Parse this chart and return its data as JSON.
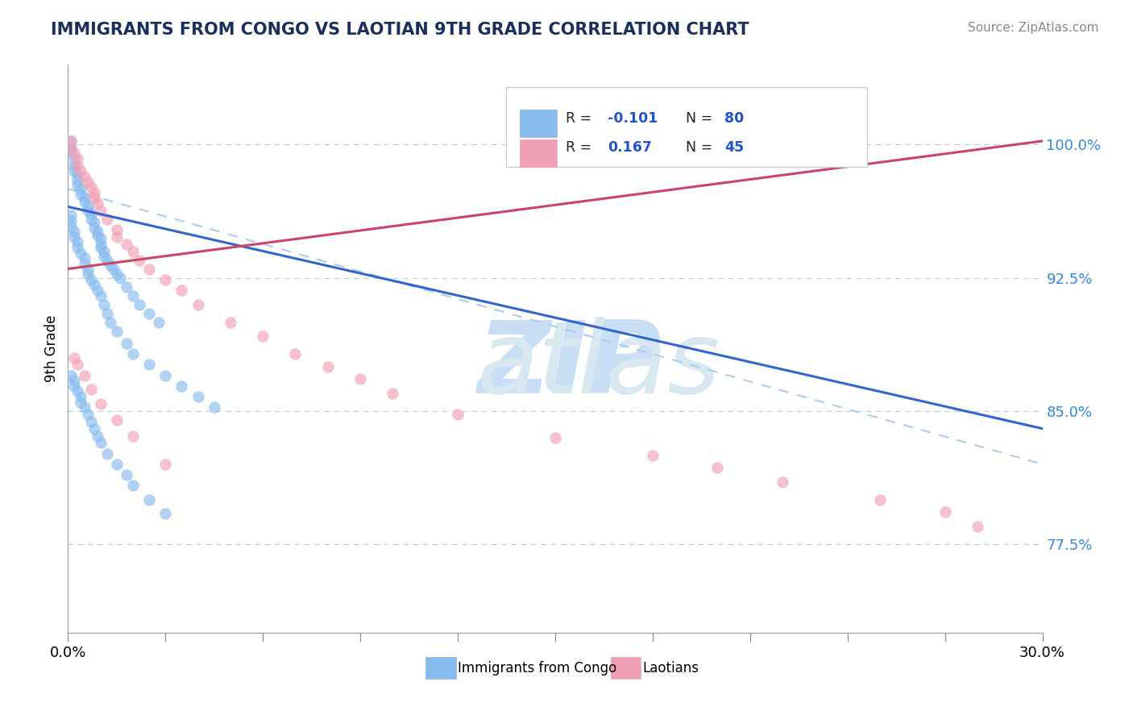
{
  "title": "IMMIGRANTS FROM CONGO VS LAOTIAN 9TH GRADE CORRELATION CHART",
  "source": "Source: ZipAtlas.com",
  "ylabel": "9th Grade",
  "y_tick_labels": [
    "77.5%",
    "85.0%",
    "92.5%",
    "100.0%"
  ],
  "y_tick_values": [
    0.775,
    0.85,
    0.925,
    1.0
  ],
  "xlim": [
    0.0,
    0.3
  ],
  "ylim": [
    0.725,
    1.045
  ],
  "blue_color": "#88BBEE",
  "pink_color": "#F0A0B5",
  "blue_line_color": "#3366CC",
  "pink_line_color": "#CC4466",
  "dashed_line_color": "#AACCEE",
  "watermark_zip_color": "#C8DFF5",
  "watermark_atlas_color": "#D8E8F0",
  "blue_line_x": [
    0.0,
    0.3
  ],
  "blue_line_y": [
    0.965,
    0.84
  ],
  "pink_line_x": [
    0.0,
    0.3
  ],
  "pink_line_y": [
    0.93,
    1.002
  ],
  "dashed_line_x": [
    0.0,
    0.3
  ],
  "dashed_line_y": [
    0.975,
    0.82
  ],
  "blue_x": [
    0.001,
    0.001,
    0.001,
    0.002,
    0.002,
    0.002,
    0.003,
    0.003,
    0.003,
    0.004,
    0.004,
    0.005,
    0.005,
    0.006,
    0.006,
    0.007,
    0.007,
    0.008,
    0.008,
    0.009,
    0.009,
    0.01,
    0.01,
    0.01,
    0.011,
    0.011,
    0.012,
    0.013,
    0.014,
    0.015,
    0.016,
    0.018,
    0.02,
    0.022,
    0.025,
    0.028,
    0.001,
    0.001,
    0.001,
    0.002,
    0.002,
    0.003,
    0.003,
    0.004,
    0.005,
    0.005,
    0.006,
    0.006,
    0.007,
    0.008,
    0.009,
    0.01,
    0.011,
    0.012,
    0.013,
    0.015,
    0.018,
    0.02,
    0.025,
    0.03,
    0.035,
    0.04,
    0.045,
    0.001,
    0.002,
    0.002,
    0.003,
    0.004,
    0.004,
    0.005,
    0.006,
    0.007,
    0.008,
    0.009,
    0.01,
    0.012,
    0.015,
    0.018,
    0.02,
    0.025,
    0.03
  ],
  "blue_y": [
    1.002,
    0.998,
    0.996,
    0.992,
    0.988,
    0.985,
    0.983,
    0.98,
    0.977,
    0.975,
    0.972,
    0.97,
    0.968,
    0.965,
    0.963,
    0.961,
    0.958,
    0.956,
    0.953,
    0.951,
    0.949,
    0.947,
    0.944,
    0.942,
    0.94,
    0.937,
    0.935,
    0.932,
    0.93,
    0.927,
    0.925,
    0.92,
    0.915,
    0.91,
    0.905,
    0.9,
    0.96,
    0.957,
    0.954,
    0.951,
    0.948,
    0.945,
    0.942,
    0.939,
    0.936,
    0.933,
    0.93,
    0.927,
    0.924,
    0.921,
    0.918,
    0.915,
    0.91,
    0.905,
    0.9,
    0.895,
    0.888,
    0.882,
    0.876,
    0.87,
    0.864,
    0.858,
    0.852,
    0.87,
    0.867,
    0.864,
    0.861,
    0.858,
    0.855,
    0.852,
    0.848,
    0.844,
    0.84,
    0.836,
    0.832,
    0.826,
    0.82,
    0.814,
    0.808,
    0.8,
    0.792
  ],
  "pink_x": [
    0.001,
    0.001,
    0.002,
    0.003,
    0.003,
    0.004,
    0.005,
    0.006,
    0.007,
    0.008,
    0.008,
    0.009,
    0.01,
    0.012,
    0.015,
    0.015,
    0.018,
    0.02,
    0.022,
    0.025,
    0.03,
    0.035,
    0.04,
    0.05,
    0.06,
    0.07,
    0.08,
    0.09,
    0.1,
    0.12,
    0.15,
    0.18,
    0.2,
    0.22,
    0.25,
    0.27,
    0.002,
    0.003,
    0.005,
    0.007,
    0.01,
    0.015,
    0.02,
    0.03,
    0.28
  ],
  "pink_y": [
    1.002,
    0.998,
    0.995,
    0.992,
    0.988,
    0.985,
    0.982,
    0.979,
    0.976,
    0.973,
    0.97,
    0.967,
    0.963,
    0.958,
    0.952,
    0.948,
    0.944,
    0.94,
    0.935,
    0.93,
    0.924,
    0.918,
    0.91,
    0.9,
    0.892,
    0.882,
    0.875,
    0.868,
    0.86,
    0.848,
    0.835,
    0.825,
    0.818,
    0.81,
    0.8,
    0.793,
    0.88,
    0.876,
    0.87,
    0.862,
    0.854,
    0.845,
    0.836,
    0.82,
    0.785
  ]
}
